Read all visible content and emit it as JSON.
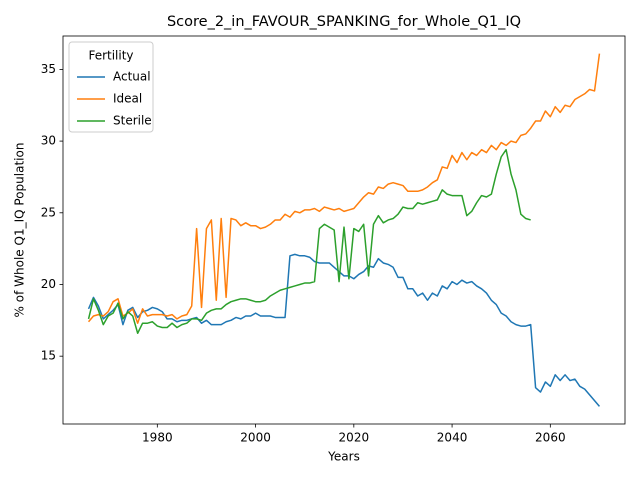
{
  "chart_data": {
    "type": "line",
    "title": "Score_2_in_FAVOUR_SPANKING_for_Whole_Q1_IQ",
    "xlabel": "Years",
    "ylabel": "% of Whole Q1_IQ Population",
    "legend_title": "Fertility",
    "legend": "upper left",
    "x": [
      1966,
      1967,
      1968,
      1969,
      1970,
      1971,
      1972,
      1973,
      1974,
      1975,
      1976,
      1977,
      1978,
      1979,
      1980,
      1981,
      1982,
      1983,
      1984,
      1985,
      1986,
      1987,
      1988,
      1989,
      1990,
      1991,
      1992,
      1993,
      1994,
      1995,
      1996,
      1997,
      1998,
      1999,
      2000,
      2001,
      2002,
      2003,
      2004,
      2005,
      2006,
      2007,
      2008,
      2009,
      2010,
      2011,
      2012,
      2013,
      2014,
      2015,
      2016,
      2017,
      2018,
      2019,
      2020,
      2021,
      2022,
      2023,
      2024,
      2025,
      2026,
      2027,
      2028,
      2029,
      2030,
      2031,
      2032,
      2033,
      2034,
      2035,
      2036,
      2037,
      2038,
      2039,
      2040,
      2041,
      2042,
      2043,
      2044,
      2045,
      2046,
      2047,
      2048,
      2049,
      2050,
      2051,
      2052,
      2053,
      2054,
      2055,
      2056,
      2057,
      2058,
      2059,
      2060,
      2061,
      2062,
      2063,
      2064,
      2065,
      2066,
      2067,
      2068,
      2069,
      2070
    ],
    "series": [
      {
        "name": "Actual",
        "color": "#1f77b4",
        "values": [
          18.3,
          19.1,
          18.5,
          17.6,
          17.9,
          18.2,
          18.6,
          17.2,
          18.2,
          18.4,
          17.7,
          18.1,
          18.2,
          18.4,
          18.3,
          18.1,
          17.6,
          17.6,
          17.4,
          17.5,
          17.5,
          17.6,
          17.7,
          17.3,
          17.5,
          17.2,
          17.2,
          17.2,
          17.4,
          17.5,
          17.7,
          17.6,
          17.8,
          17.8,
          18.0,
          17.8,
          17.8,
          17.8,
          17.7,
          17.7,
          17.7,
          22.0,
          22.1,
          22.0,
          22.0,
          21.9,
          21.6,
          21.5,
          21.5,
          21.5,
          21.2,
          20.9,
          20.6,
          20.6,
          20.4,
          20.7,
          20.9,
          21.3,
          21.2,
          21.8,
          21.5,
          21.4,
          21.2,
          20.5,
          20.5,
          19.7,
          19.7,
          19.2,
          19.4,
          18.9,
          19.4,
          19.2,
          19.9,
          19.7,
          20.2,
          20.0,
          20.3,
          20.1,
          20.2,
          19.9,
          19.7,
          19.4,
          18.9,
          18.6,
          18.0,
          17.8,
          17.4,
          17.2,
          17.1,
          17.1,
          17.2,
          12.8,
          12.5,
          13.2,
          12.9,
          13.7,
          13.3,
          13.7,
          13.3,
          13.4,
          12.9,
          12.7,
          12.3,
          11.9,
          11.5
        ]
      },
      {
        "name": "Ideal",
        "color": "#ff7f0e",
        "values": [
          17.4,
          17.8,
          17.9,
          17.8,
          18.1,
          18.8,
          19.0,
          17.8,
          18.0,
          18.3,
          17.3,
          18.3,
          17.8,
          17.9,
          17.9,
          17.9,
          17.8,
          17.9,
          17.6,
          17.8,
          17.9,
          18.5,
          23.9,
          18.4,
          23.9,
          24.5,
          18.9,
          24.6,
          19.1,
          24.6,
          24.5,
          24.1,
          24.3,
          24.1,
          24.1,
          23.9,
          24.0,
          24.2,
          24.5,
          24.5,
          24.9,
          24.7,
          25.1,
          25.0,
          25.2,
          25.2,
          25.3,
          25.1,
          25.4,
          25.3,
          25.2,
          25.3,
          25.1,
          25.2,
          25.3,
          25.7,
          26.1,
          26.4,
          26.3,
          26.8,
          26.7,
          27.0,
          27.1,
          27.0,
          26.9,
          26.5,
          26.5,
          26.5,
          26.6,
          26.8,
          27.1,
          27.3,
          28.2,
          28.1,
          29.0,
          28.5,
          29.2,
          28.7,
          29.2,
          29.0,
          29.4,
          29.2,
          29.7,
          29.4,
          29.9,
          29.7,
          30.0,
          29.9,
          30.4,
          30.5,
          30.9,
          31.4,
          31.4,
          32.1,
          31.7,
          32.4,
          32.0,
          32.5,
          32.4,
          32.9,
          33.1,
          33.3,
          33.6,
          33.5,
          36.1
        ]
      },
      {
        "name": "Sterile",
        "color": "#2ca02c",
        "values": [
          17.6,
          19.0,
          18.2,
          17.2,
          17.8,
          18.0,
          18.7,
          17.6,
          18.1,
          17.8,
          16.6,
          17.3,
          17.3,
          17.4,
          17.1,
          17.0,
          17.0,
          17.3,
          17.0,
          17.2,
          17.3,
          17.6,
          17.6,
          17.5,
          18.0,
          18.2,
          18.3,
          18.3,
          18.6,
          18.8,
          18.9,
          19.0,
          19.0,
          18.9,
          18.8,
          18.8,
          18.9,
          19.2,
          19.4,
          19.6,
          19.7,
          19.8,
          19.9,
          20.0,
          20.1,
          20.1,
          20.2,
          23.9,
          24.2,
          24.0,
          23.8,
          20.2,
          24.0,
          20.4,
          23.9,
          23.7,
          24.2,
          20.6,
          24.2,
          24.8,
          24.3,
          24.5,
          24.6,
          24.9,
          25.4,
          25.3,
          25.3,
          25.7,
          25.6,
          25.7,
          25.8,
          25.9,
          26.6,
          26.3,
          26.2,
          26.2,
          26.2,
          24.8,
          25.1,
          25.7,
          26.2,
          26.1,
          26.3,
          27.7,
          28.9,
          29.4,
          27.7,
          26.6,
          24.9,
          24.6,
          24.5,
          null,
          null,
          null,
          null,
          null,
          null,
          null,
          null,
          null,
          null,
          null,
          null,
          null,
          null
        ]
      }
    ],
    "xlim": [
      1960.8,
      2075.2
    ],
    "ylim": [
      10.27,
      37.33
    ],
    "xticks": [
      1980,
      2000,
      2020,
      2040,
      2060
    ],
    "yticks": [
      15,
      20,
      25,
      30,
      35
    ]
  }
}
